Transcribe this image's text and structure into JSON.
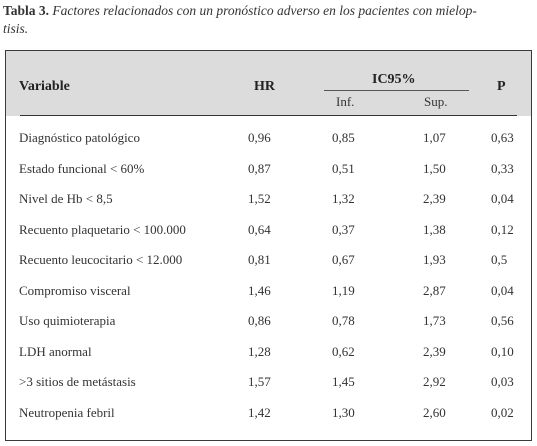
{
  "caption": {
    "label": "Tabla 3.",
    "text_line1": "Factores relacionados con un pronóstico adverso en los pacientes con mielop-",
    "text_line2": "tisis."
  },
  "table": {
    "headers": {
      "variable": "Variable",
      "hr": "HR",
      "ic95": "IC95%",
      "inf": "Inf.",
      "sup": "Sup.",
      "p": "P"
    },
    "rows": [
      {
        "variable": "Diagnóstico patológico",
        "hr": "0,96",
        "inf": "0,85",
        "sup": "1,07",
        "p": "0,63"
      },
      {
        "variable": "Estado funcional < 60%",
        "hr": "0,87",
        "inf": "0,51",
        "sup": "1,50",
        "p": "0,33"
      },
      {
        "variable": "Nivel de Hb < 8,5",
        "hr": "1,52",
        "inf": "1,32",
        "sup": "2,39",
        "p": "0,04"
      },
      {
        "variable": "Recuento plaquetario < 100.000",
        "hr": "0,64",
        "inf": "0,37",
        "sup": "1,38",
        "p": "0,12"
      },
      {
        "variable": "Recuento leucocitario < 12.000",
        "hr": "0,81",
        "inf": "0,67",
        "sup": "1,93",
        "p": "0,5"
      },
      {
        "variable": "Compromiso visceral",
        "hr": "1,46",
        "inf": "1,19",
        "sup": "2,87",
        "p": "0,04"
      },
      {
        "variable": "Uso quimioterapia",
        "hr": "0,86",
        "inf": "0,78",
        "sup": "1,73",
        "p": "0,56"
      },
      {
        "variable": "LDH anormal",
        "hr": "1,28",
        "inf": "0,62",
        "sup": "2,39",
        "p": "0,10"
      },
      {
        "variable": ">3 sitios de metástasis",
        "hr": "1,57",
        "inf": "1,45",
        "sup": "2,92",
        "p": "0,03"
      },
      {
        "variable": "Neutropenia febril",
        "hr": "1,42",
        "inf": "1,30",
        "sup": "2,60",
        "p": "0,02"
      }
    ]
  }
}
